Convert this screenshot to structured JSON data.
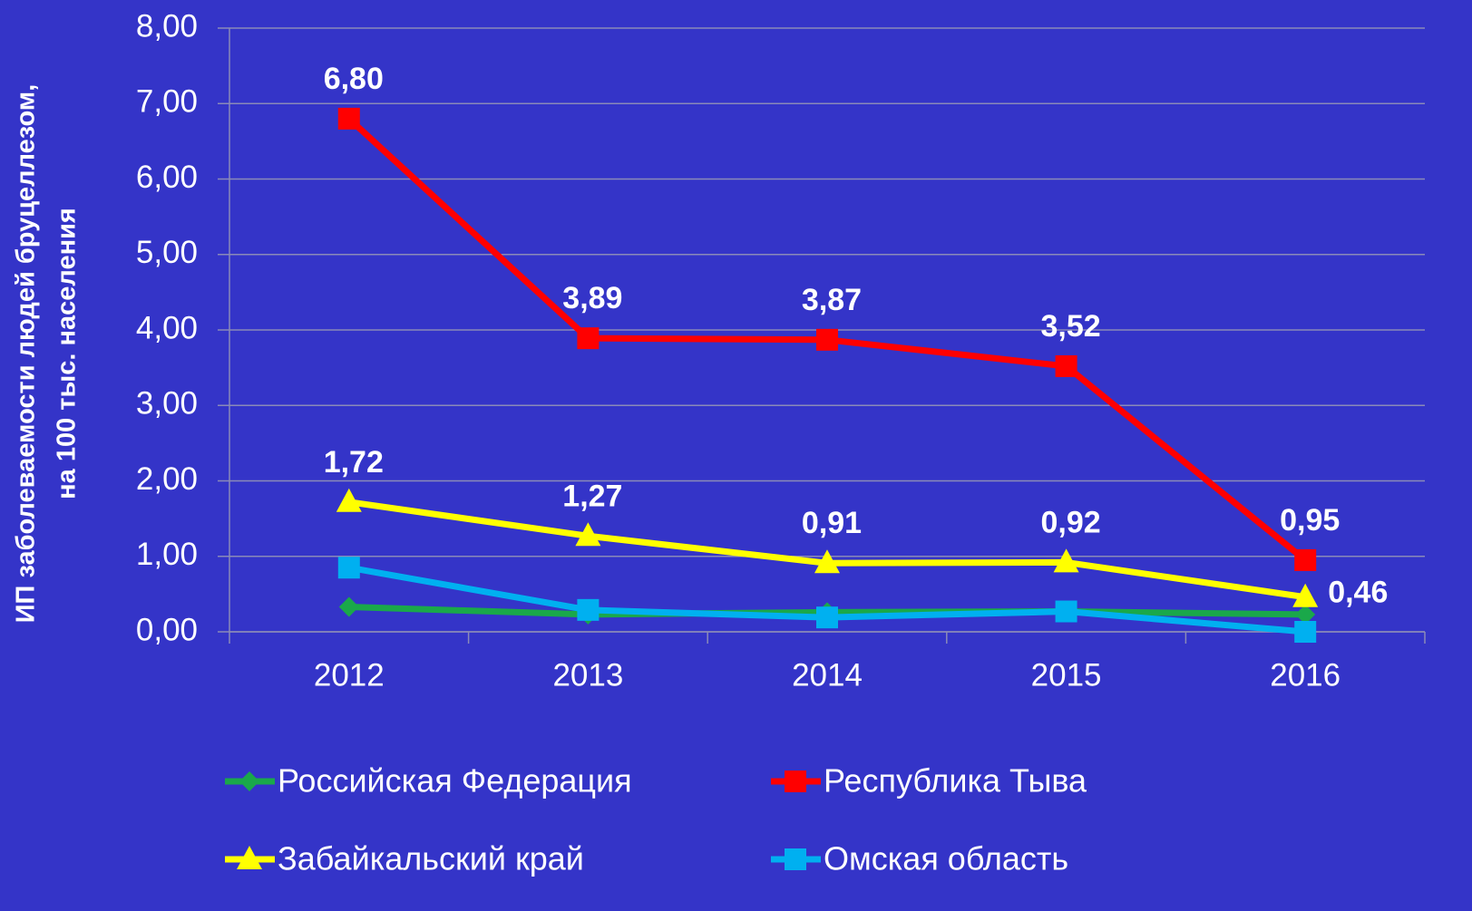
{
  "chart_data": {
    "type": "line",
    "y_label": [
      "ИП заболеваемости людей бруцеллезом,",
      "на 100 тыс. населения"
    ],
    "categories": [
      "2012",
      "2013",
      "2014",
      "2015",
      "2016"
    ],
    "ylim": [
      0,
      8
    ],
    "yticks": [
      {
        "value": 0,
        "label": "0,00"
      },
      {
        "value": 1,
        "label": "1,00"
      },
      {
        "value": 2,
        "label": "2,00"
      },
      {
        "value": 3,
        "label": "3,00"
      },
      {
        "value": 4,
        "label": "4,00"
      },
      {
        "value": 5,
        "label": "5,00"
      },
      {
        "value": 6,
        "label": "6,00"
      },
      {
        "value": 7,
        "label": "7,00"
      },
      {
        "value": 8,
        "label": "8,00"
      }
    ],
    "grid": true,
    "legend": "bottom",
    "series": [
      {
        "name": "Российская Федерация",
        "color": "#1aa84a",
        "marker": "diamond",
        "values": [
          0.33,
          0.23,
          0.26,
          0.27,
          0.23
        ]
      },
      {
        "name": "Республика Тыва",
        "color": "#ff0000",
        "marker": "square",
        "values": [
          6.8,
          3.89,
          3.87,
          3.52,
          0.95
        ],
        "value_labels": [
          "6,80",
          "3,89",
          "3,87",
          "3,52",
          "0,95"
        ]
      },
      {
        "name": "Забайкальский край",
        "color": "#ffff00",
        "marker": "triangle",
        "values": [
          1.72,
          1.27,
          0.91,
          0.92,
          0.46
        ],
        "value_labels": [
          "1,72",
          "1,27",
          "0,91",
          "0,92",
          "0,46"
        ]
      },
      {
        "name": "Омская область",
        "color": "#00b0f0",
        "marker": "square",
        "values": [
          0.85,
          0.29,
          0.19,
          0.27,
          0.0
        ]
      }
    ]
  }
}
